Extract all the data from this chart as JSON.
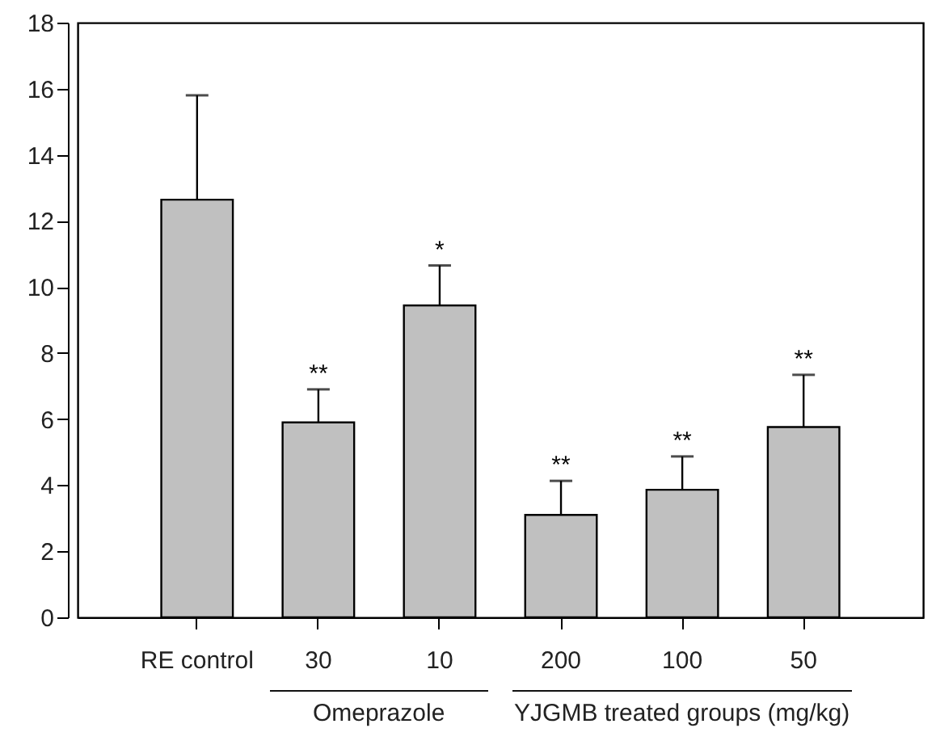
{
  "chart_data": {
    "type": "bar",
    "categories": [
      "RE control",
      "30",
      "10",
      "200",
      "100",
      "50"
    ],
    "values": [
      12.64,
      5.9,
      9.44,
      3.1,
      3.86,
      5.76
    ],
    "errors": [
      [
        12.64,
        15.8
      ],
      [
        5.9,
        6.9
      ],
      [
        9.44,
        10.65
      ],
      [
        3.1,
        4.13
      ],
      [
        3.86,
        4.87
      ],
      [
        5.76,
        7.34
      ]
    ],
    "color": "#c0c0c0",
    "ylim": [
      0,
      18
    ],
    "yticks": [
      0,
      2,
      4,
      6,
      8,
      10,
      12,
      14,
      16,
      18
    ],
    "annotations": [
      {
        "text": "**",
        "x": "30",
        "y": 6.9
      },
      {
        "text": "*",
        "x": "10",
        "y": 10.65
      },
      {
        "text": "**",
        "x": "200",
        "y": 4.13
      },
      {
        "text": "**",
        "x": "100",
        "y": 4.87
      },
      {
        "text": "**",
        "x": "50",
        "y": 7.34
      },
      "Omeprazole",
      "YJGMB treated groups (mg/kg)"
    ]
  }
}
